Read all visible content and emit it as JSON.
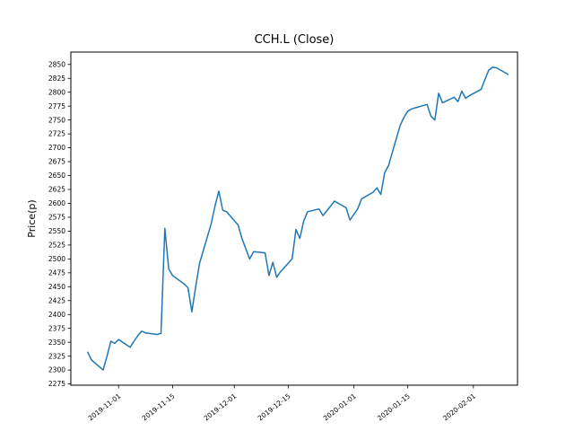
{
  "chart_data": {
    "type": "line",
    "title": "CCH.L (Close)",
    "xlabel": "",
    "ylabel": "Price(p)",
    "grid": false,
    "legend": null,
    "line_color": "#1f77b4",
    "axis_color": "#000000",
    "ylim": [
      2273,
      2872
    ],
    "yticks": [
      2275,
      2300,
      2325,
      2350,
      2375,
      2400,
      2425,
      2450,
      2475,
      2500,
      2525,
      2550,
      2575,
      2600,
      2625,
      2650,
      2675,
      2700,
      2725,
      2750,
      2775,
      2800,
      2825,
      2850
    ],
    "xticks": [
      "2019-11-01",
      "2019-11-15",
      "2019-12-01",
      "2019-12-15",
      "2020-01-01",
      "2020-01-15",
      "2020-02-01"
    ],
    "series": [
      {
        "name": "Close",
        "color": "#1f77b4",
        "points": [
          [
            "2019-10-24",
            2332
          ],
          [
            "2019-10-25",
            2318
          ],
          [
            "2019-10-28",
            2300
          ],
          [
            "2019-10-29",
            2325
          ],
          [
            "2019-10-30",
            2352
          ],
          [
            "2019-10-31",
            2348
          ],
          [
            "2019-11-01",
            2355
          ],
          [
            "2019-11-04",
            2341
          ],
          [
            "2019-11-05",
            2352
          ],
          [
            "2019-11-06",
            2362
          ],
          [
            "2019-11-07",
            2370
          ],
          [
            "2019-11-08",
            2367
          ],
          [
            "2019-11-11",
            2364
          ],
          [
            "2019-11-12",
            2366
          ],
          [
            "2019-11-13",
            2555
          ],
          [
            "2019-11-14",
            2482
          ],
          [
            "2019-11-15",
            2470
          ],
          [
            "2019-11-18",
            2455
          ],
          [
            "2019-11-19",
            2448
          ],
          [
            "2019-11-20",
            2405
          ],
          [
            "2019-11-21",
            2450
          ],
          [
            "2019-11-22",
            2492
          ],
          [
            "2019-11-25",
            2563
          ],
          [
            "2019-11-26",
            2595
          ],
          [
            "2019-11-27",
            2622
          ],
          [
            "2019-11-28",
            2588
          ],
          [
            "2019-11-29",
            2585
          ],
          [
            "2019-12-02",
            2561
          ],
          [
            "2019-12-03",
            2537
          ],
          [
            "2019-12-04",
            2518
          ],
          [
            "2019-12-05",
            2500
          ],
          [
            "2019-12-06",
            2513
          ],
          [
            "2019-12-09",
            2511
          ],
          [
            "2019-12-10",
            2470
          ],
          [
            "2019-12-11",
            2494
          ],
          [
            "2019-12-12",
            2467
          ],
          [
            "2019-12-13",
            2477
          ],
          [
            "2019-12-16",
            2500
          ],
          [
            "2019-12-17",
            2553
          ],
          [
            "2019-12-18",
            2537
          ],
          [
            "2019-12-19",
            2568
          ],
          [
            "2019-12-20",
            2585
          ],
          [
            "2019-12-23",
            2590
          ],
          [
            "2019-12-24",
            2578
          ],
          [
            "2019-12-27",
            2604
          ],
          [
            "2019-12-30",
            2592
          ],
          [
            "2019-12-31",
            2570
          ],
          [
            "2020-01-02",
            2590
          ],
          [
            "2020-01-03",
            2608
          ],
          [
            "2020-01-06",
            2620
          ],
          [
            "2020-01-07",
            2628
          ],
          [
            "2020-01-08",
            2616
          ],
          [
            "2020-01-09",
            2655
          ],
          [
            "2020-01-10",
            2668
          ],
          [
            "2020-01-13",
            2740
          ],
          [
            "2020-01-14",
            2755
          ],
          [
            "2020-01-15",
            2766
          ],
          [
            "2020-01-16",
            2770
          ],
          [
            "2020-01-17",
            2772
          ],
          [
            "2020-01-20",
            2778
          ],
          [
            "2020-01-21",
            2757
          ],
          [
            "2020-01-22",
            2750
          ],
          [
            "2020-01-23",
            2798
          ],
          [
            "2020-01-24",
            2781
          ],
          [
            "2020-01-27",
            2791
          ],
          [
            "2020-01-28",
            2783
          ],
          [
            "2020-01-29",
            2802
          ],
          [
            "2020-01-30",
            2789
          ],
          [
            "2020-01-31",
            2794
          ],
          [
            "2020-02-03",
            2805
          ],
          [
            "2020-02-04",
            2823
          ],
          [
            "2020-02-05",
            2840
          ],
          [
            "2020-02-06",
            2845
          ],
          [
            "2020-02-07",
            2844
          ],
          [
            "2020-02-10",
            2832
          ]
        ]
      }
    ]
  }
}
